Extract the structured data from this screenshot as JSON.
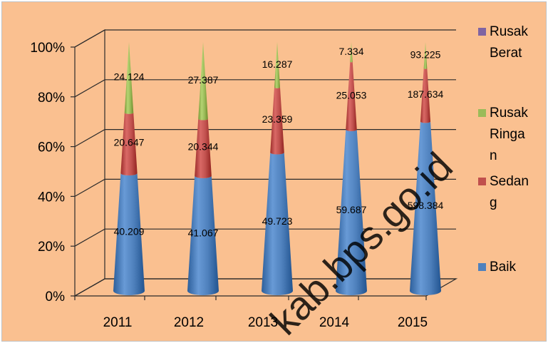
{
  "watermark": "kab.bps.go.id",
  "chart_data": {
    "type": "bar",
    "stacking": "percent",
    "shape": "3d-cone",
    "categories": [
      "2011",
      "2012",
      "2013",
      "2014",
      "2015"
    ],
    "ylim": [
      0,
      100
    ],
    "y_ticks": [
      "0%",
      "20%",
      "40%",
      "60%",
      "80%",
      "100%"
    ],
    "grid": true,
    "legend_position": "right",
    "series": [
      {
        "name": "Baik",
        "color": "#4f81bd",
        "values": [
          40.209,
          41.067,
          49.723,
          59.687,
          598.384
        ],
        "labels": [
          "40.209",
          "41.067",
          "49.723",
          "59.687",
          "598.384"
        ]
      },
      {
        "name": "Sedang",
        "color": "#c0504d",
        "values": [
          20.647,
          20.344,
          23.359,
          25.053,
          187.634
        ],
        "labels": [
          "20.647",
          "20.344",
          "23.359",
          "25.053",
          "187.634"
        ]
      },
      {
        "name": "Rusak Ringan",
        "color": "#9bbb59",
        "values": [
          24.124,
          27.387,
          16.287,
          7.334,
          93.225
        ],
        "labels": [
          "24.124",
          "27.387",
          "16.287",
          "7.334",
          "93.225"
        ]
      },
      {
        "name": "Rusak Berat",
        "color": "#8064a2",
        "values": [
          null,
          null,
          null,
          null,
          null
        ],
        "labels": [
          "",
          "",
          "",
          "",
          ""
        ]
      }
    ],
    "legend_lines": {
      "Rusak Berat": [
        "Rusak",
        "Berat"
      ],
      "Rusak Ringan": [
        "Rusak",
        "Ringa",
        "n"
      ],
      "Sedang": [
        "Sedan",
        "g"
      ],
      "Baik": [
        "Baik"
      ]
    }
  }
}
